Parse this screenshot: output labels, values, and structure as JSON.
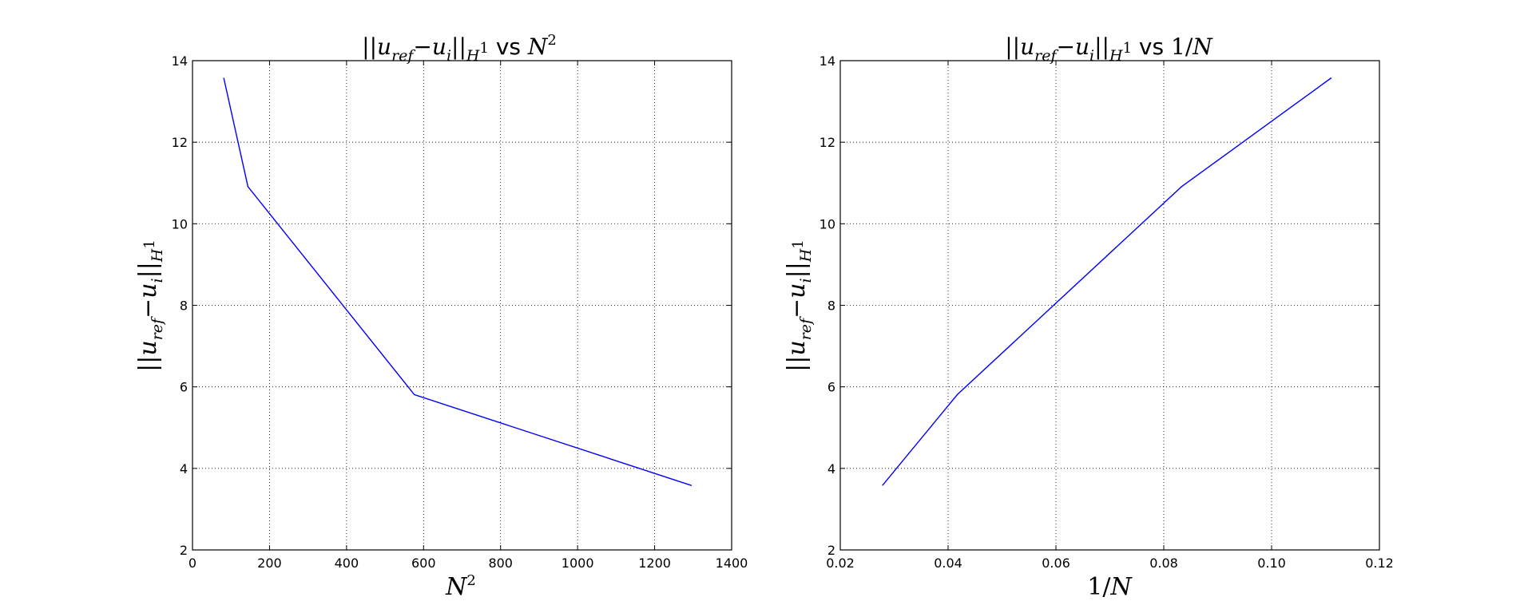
{
  "chart_data": [
    {
      "type": "line",
      "title": "||u_ref − u_i||_H¹ vs N²",
      "xlabel": "N²",
      "ylabel": "||u_ref − u_i||_H¹",
      "xlim": [
        0,
        1400
      ],
      "ylim": [
        2,
        14
      ],
      "xticks": [
        0,
        200,
        400,
        600,
        800,
        1000,
        1200,
        1400
      ],
      "yticks": [
        2,
        4,
        6,
        8,
        10,
        12,
        14
      ],
      "xtick_labels": [
        "0",
        "200",
        "400",
        "600",
        "800",
        "1000",
        "1200",
        "1400"
      ],
      "ytick_labels": [
        "2",
        "4",
        "6",
        "8",
        "10",
        "12",
        "14"
      ],
      "grid": true,
      "series_color": "#0000ff",
      "x": [
        81,
        144,
        576,
        1296
      ],
      "y": [
        13.58,
        10.91,
        5.81,
        3.58
      ]
    },
    {
      "type": "line",
      "title": "||u_ref − u_i||_H¹ vs 1/N",
      "xlabel": "1/N",
      "ylabel": "||u_ref − u_i||_H¹",
      "xlim": [
        0.02,
        0.12
      ],
      "ylim": [
        2,
        14
      ],
      "xticks": [
        0.02,
        0.04,
        0.06,
        0.08,
        0.1,
        0.12
      ],
      "yticks": [
        2,
        4,
        6,
        8,
        10,
        12,
        14
      ],
      "xtick_labels": [
        "0.02",
        "0.04",
        "0.06",
        "0.08",
        "0.10",
        "0.12"
      ],
      "ytick_labels": [
        "2",
        "4",
        "6",
        "8",
        "10",
        "12",
        "14"
      ],
      "grid": true,
      "series_color": "#0000ff",
      "x": [
        0.0278,
        0.0417,
        0.0833,
        0.1111
      ],
      "y": [
        3.58,
        5.81,
        10.91,
        13.58
      ]
    }
  ]
}
